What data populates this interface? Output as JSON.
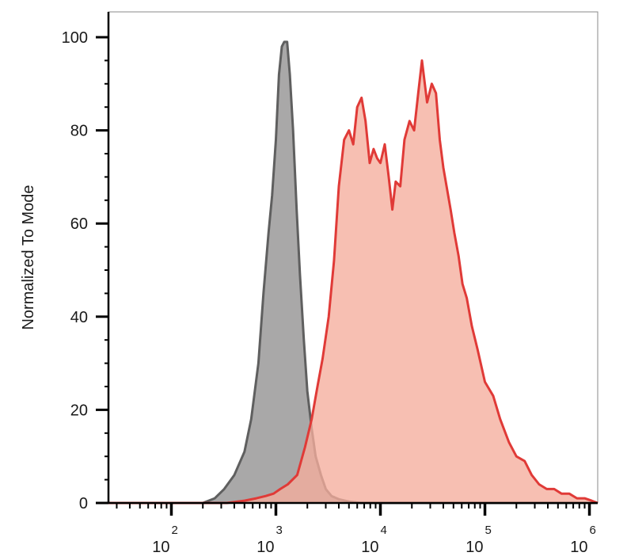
{
  "chart_data": {
    "type": "area",
    "title": "",
    "ylabel": "Normalized To Mode",
    "xlabel": "",
    "x_scale": "log",
    "xlim": [
      25,
      1200000
    ],
    "ylim": [
      0,
      100
    ],
    "grid": false,
    "legend": "none",
    "y_ticks": [
      {
        "value": 0,
        "label": "0"
      },
      {
        "value": 20,
        "label": "20"
      },
      {
        "value": 40,
        "label": "40"
      },
      {
        "value": 60,
        "label": "60"
      },
      {
        "value": 80,
        "label": "80"
      },
      {
        "value": 100,
        "label": "100"
      }
    ],
    "x_ticks": [
      {
        "value": 100,
        "base": "10",
        "exp": "2"
      },
      {
        "value": 1000,
        "base": "10",
        "exp": "3"
      },
      {
        "value": 10000,
        "base": "10",
        "exp": "4"
      },
      {
        "value": 100000,
        "base": "10",
        "exp": "5"
      },
      {
        "value": 1000000,
        "base": "10",
        "exp": "6"
      }
    ],
    "series": [
      {
        "line_color": "#5f5f5f",
        "fill_color": "#a9a8a8",
        "x": [
          25,
          200,
          260,
          320,
          400,
          500,
          580,
          680,
          760,
          850,
          920,
          1000,
          1070,
          1140,
          1200,
          1280,
          1360,
          1460,
          1580,
          1700,
          1850,
          2000,
          2200,
          2400,
          2700,
          3000,
          3400,
          4000,
          5000,
          6500,
          1200000
        ],
        "y": [
          0,
          0,
          1,
          3,
          6,
          11,
          18,
          30,
          45,
          58,
          66,
          78,
          92,
          98,
          99,
          99,
          92,
          80,
          63,
          49,
          35,
          24,
          16,
          10,
          6,
          3,
          1.5,
          0.8,
          0.3,
          0,
          0
        ]
      },
      {
        "line_color": "#e03a37",
        "fill_color": "#f5ad9c",
        "x": [
          25,
          340,
          500,
          650,
          800,
          950,
          1100,
          1300,
          1600,
          1900,
          2200,
          2500,
          2800,
          3200,
          3600,
          4000,
          4500,
          5000,
          5500,
          6000,
          6600,
          7200,
          7900,
          8600,
          9300,
          10000,
          11000,
          12000,
          13000,
          14000,
          15500,
          17000,
          19000,
          21000,
          23000,
          25000,
          28000,
          31000,
          34000,
          37000,
          40000,
          43000,
          47000,
          51000,
          56000,
          61000,
          67000,
          75000,
          85000,
          100000,
          120000,
          140000,
          170000,
          200000,
          240000,
          280000,
          330000,
          390000,
          460000,
          540000,
          640000,
          760000,
          900000,
          1050000,
          1200000
        ],
        "y": [
          0,
          0,
          0.5,
          1,
          1.5,
          2,
          3,
          4,
          6,
          12,
          18,
          25,
          31,
          40,
          52,
          68,
          78,
          80,
          77,
          85,
          87,
          82,
          73,
          76,
          74,
          73,
          77,
          70,
          63,
          69,
          68,
          78,
          82,
          80,
          88,
          95,
          86,
          90,
          88,
          78,
          72,
          68,
          63,
          58,
          53,
          47,
          44,
          38,
          33,
          26,
          23,
          18,
          13,
          10,
          9,
          6,
          4,
          3,
          3,
          2,
          2,
          1,
          1,
          0.5,
          0
        ]
      }
    ]
  }
}
